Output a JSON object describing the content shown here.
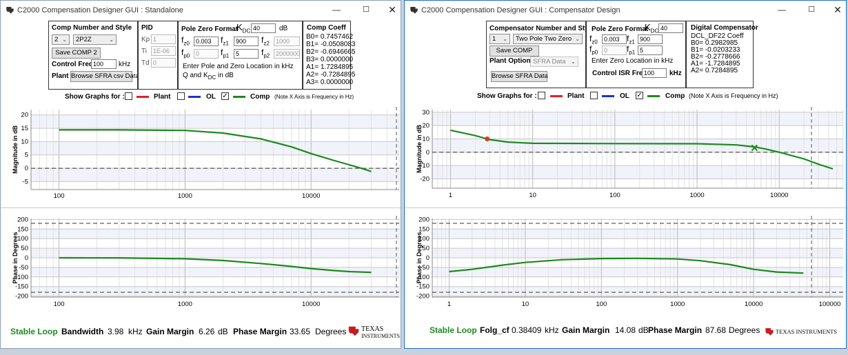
{
  "windows": [
    {
      "title": "C2000 Compensation Designer GUI : Standalone",
      "comp": {
        "header": "Comp Number and Style",
        "number": "2",
        "style": "2P2Z",
        "save_label": "Save COMP 2",
        "freq_label": "Control Freq",
        "freq_value": "100",
        "freq_unit": "kHz",
        "plant_label": "Plant",
        "browse_label": "Browse SFRA csv Data"
      },
      "pid": {
        "header": "PID",
        "kp_label": "Kp",
        "kp": "1",
        "ti_label": "Ti",
        "ti": "1E-06",
        "td_label": "Td",
        "td": "0"
      },
      "pz": {
        "header": "Pole Zero Format",
        "kdc_value": "40",
        "kdc_unit": "dB",
        "fz0": "0.003",
        "fz1": "900",
        "fz2": "1000",
        "fp0": "0",
        "fp1": "5",
        "fp2": "2000000",
        "note1": "Enter Pole and Zero Location in kHz",
        "note2a": "Q and K",
        "note2b": "in dB"
      },
      "coeff": {
        "header": "Comp Coeff",
        "lines": [
          "B0= 0.7457462",
          "B1= -0.0508083",
          "B2= -0.6946665",
          "B3= 0.0000000",
          "A1= 1.7284895",
          "A2= -0.7284895",
          "A3= 0.0000000"
        ]
      },
      "graphs": {
        "label": "Show Graphs for :",
        "plant": "Plant",
        "ol": "OL",
        "comp": "Comp",
        "note": "(Note X Axis is Frequency in Hz)"
      },
      "footer": {
        "stable": "Stable Loop",
        "m1_label": "Bandwidth",
        "m1_value": "3.98",
        "m1_unit": "kHz",
        "gm_label": "Gain Margin",
        "gm_value": "6.26",
        "gm_unit": "dB",
        "pm_label": "Phase Margin",
        "pm_value": "33.65",
        "pm_unit": "Degrees"
      }
    },
    {
      "title": "C2000 Compensation Designer GUI : Compensator Design",
      "comp": {
        "header": "Compensator Number and Style",
        "number": "1",
        "style": "Two Pole Two Zero",
        "save_label": "Save COMP",
        "plant_label": "Plant Option",
        "plant_value": "SFRA Data",
        "browse_label": "Browse SFRA Data"
      },
      "pz": {
        "header": "Pole Zero Format",
        "kdc_value": "40",
        "fz0": "0.003",
        "fz1": "900",
        "fp0": "0",
        "fp1": "5",
        "note1": "Enter Zero Location in kHz",
        "isr_label": "Control ISR Freq",
        "isr_value": "100",
        "isr_unit": "kHz"
      },
      "coeff": {
        "header": "Digital Compensator",
        "lines": [
          "DCL_DF22 Coeff",
          "B0= 0.2982985",
          "B1= -0.0203233",
          "B2= -0.2778666",
          "A1= -1.7284895",
          "A2= 0.7284895"
        ]
      },
      "graphs": {
        "label": "Show Graphs for :",
        "plant": "Plant",
        "ol": "OL",
        "comp": "Comp",
        "note": "(Note X Axis is Frequency in Hz)"
      },
      "footer": {
        "stable": "Stable Loop",
        "m1_label": "Folg_cf",
        "m1_value": "0.38409",
        "m1_unit": "kHz",
        "gm_label": "Gain Margin",
        "gm_value": "14.08",
        "gm_unit": "dB",
        "pm_label": "Phase Margin",
        "pm_value": "87.68",
        "pm_unit": "Degrees"
      }
    }
  ],
  "logo": {
    "line1": "Texas",
    "line2": "Instruments",
    "full": "Texas Instruments"
  },
  "colors": {
    "comp": "#1a8a1a",
    "plant": "#e02020",
    "ol": "#1f2fd0",
    "marker_red": "#d04020"
  },
  "chart_data": [
    {
      "type": "line",
      "scale": "log-x",
      "ylabel": "Magnitude in dB",
      "xlim": [
        60,
        50000
      ],
      "ylim": [
        -8,
        22
      ],
      "x_ticks": [
        100,
        1000,
        10000
      ],
      "y_ticks": [
        -5,
        0,
        5,
        10,
        15,
        20
      ],
      "series": [
        {
          "values": [
            [
              100,
              14.4
            ],
            [
              300,
              14.4
            ],
            [
              1000,
              14.2
            ],
            [
              2000,
              13.2
            ],
            [
              4000,
              11.0
            ],
            [
              7000,
              8.0
            ],
            [
              10000,
              5.5
            ],
            [
              15000,
              3.0
            ],
            [
              20000,
              1.3
            ],
            [
              25000,
              0.0
            ],
            [
              30000,
              -1.2
            ]
          ]
        }
      ],
      "refs": [
        0
      ]
    },
    {
      "type": "line",
      "scale": "log-x",
      "ylabel": "Phase in Degrees",
      "xlim": [
        60,
        50000
      ],
      "ylim": [
        -205,
        205
      ],
      "x_ticks": [
        100,
        1000,
        10000
      ],
      "y_ticks": [
        -200,
        -150,
        -100,
        -50,
        0,
        50,
        100,
        150,
        200
      ],
      "series": [
        {
          "values": [
            [
              100,
              0
            ],
            [
              300,
              -0.5
            ],
            [
              1000,
              -5
            ],
            [
              2000,
              -14
            ],
            [
              4000,
              -30
            ],
            [
              7000,
              -45
            ],
            [
              10000,
              -56
            ],
            [
              15000,
              -66
            ],
            [
              20000,
              -72
            ],
            [
              30000,
              -76
            ]
          ]
        }
      ],
      "refs": [
        180,
        -180
      ]
    },
    {
      "type": "line",
      "scale": "log-x",
      "ylabel": "Magnitude in dB",
      "xlim": [
        0.6,
        60000
      ],
      "ylim": [
        -27,
        32
      ],
      "x_ticks": [
        1,
        10,
        100,
        1000,
        10000
      ],
      "y_ticks": [
        -20,
        -10,
        0,
        10,
        20,
        30
      ],
      "series": [
        {
          "values": [
            [
              1,
              16.5
            ],
            [
              2,
              12.5
            ],
            [
              3,
              9.5
            ],
            [
              5,
              7.6
            ],
            [
              10,
              6.7
            ],
            [
              100,
              6.5
            ],
            [
              1000,
              6.4
            ],
            [
              3000,
              5.5
            ],
            [
              5000,
              4.0
            ],
            [
              7000,
              2.3
            ],
            [
              10000,
              0.0
            ],
            [
              20000,
              -5.0
            ],
            [
              30000,
              -9.0
            ],
            [
              45000,
              -12.5
            ]
          ]
        }
      ],
      "markers": [
        {
          "x": 2.8,
          "y": 10,
          "shape": "dot"
        },
        {
          "x": 5000,
          "y": 3.3,
          "shape": "x"
        }
      ],
      "refs": [
        0
      ]
    },
    {
      "type": "line",
      "scale": "log-x",
      "ylabel": "Phase in Degrees",
      "xlim": [
        0.6,
        150000
      ],
      "ylim": [
        -205,
        205
      ],
      "x_ticks": [
        1,
        10,
        100,
        1000,
        10000,
        100000
      ],
      "y_ticks": [
        -200,
        -150,
        -100,
        -50,
        0,
        50,
        100,
        150,
        200
      ],
      "series": [
        {
          "values": [
            [
              1,
              -72
            ],
            [
              2,
              -60
            ],
            [
              5,
              -38
            ],
            [
              10,
              -24
            ],
            [
              30,
              -10
            ],
            [
              100,
              -4
            ],
            [
              300,
              -3
            ],
            [
              1000,
              -6
            ],
            [
              2000,
              -15
            ],
            [
              5000,
              -36
            ],
            [
              10000,
              -60
            ],
            [
              20000,
              -74
            ],
            [
              45000,
              -80
            ]
          ]
        }
      ],
      "refs": [
        180,
        -180
      ]
    }
  ]
}
